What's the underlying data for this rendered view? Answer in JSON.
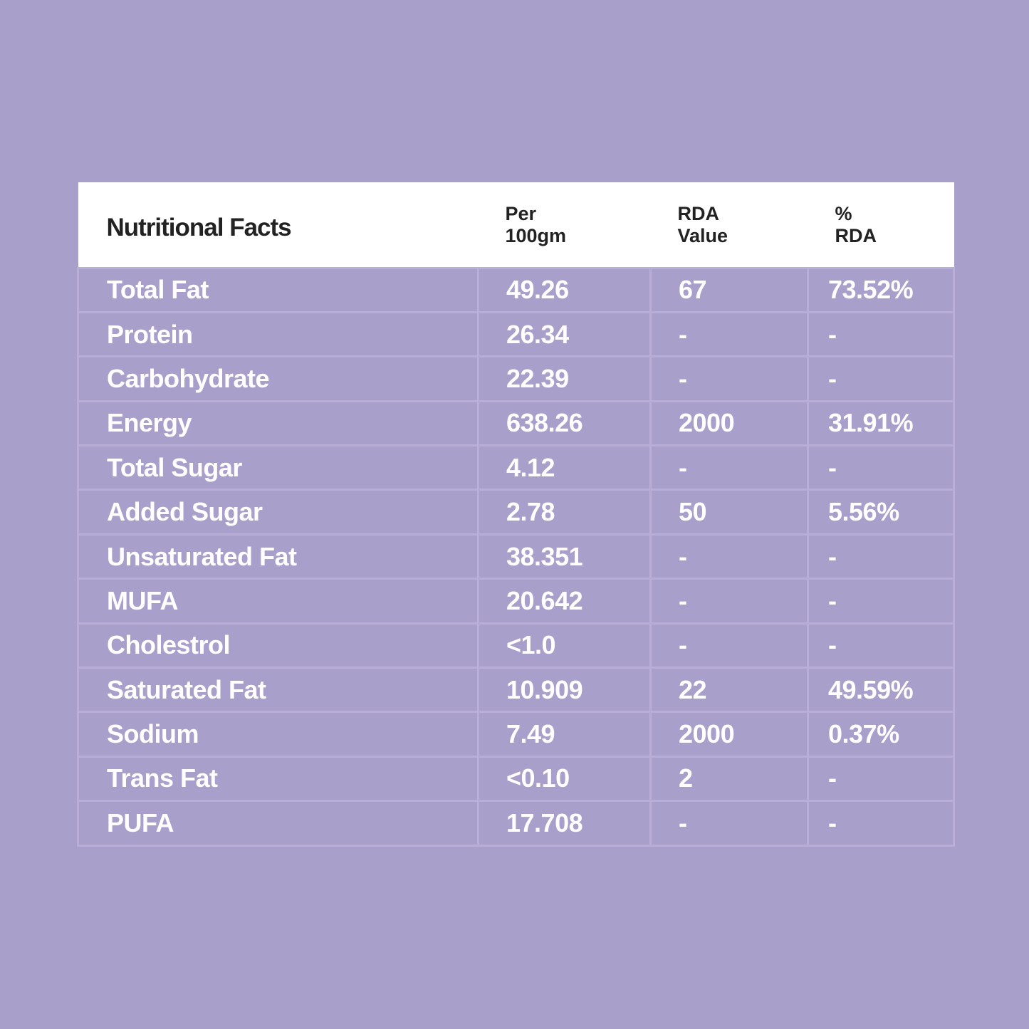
{
  "table": {
    "header": [
      [
        "Nutritional Facts"
      ],
      [
        "Per",
        "100gm"
      ],
      [
        "RDA",
        "Value"
      ],
      [
        "%",
        "RDA"
      ]
    ],
    "rows": [
      [
        "Total Fat",
        "49.26",
        "67",
        "73.52%"
      ],
      [
        "Protein",
        "26.34",
        "-",
        "-"
      ],
      [
        "Carbohydrate",
        "22.39",
        "-",
        "-"
      ],
      [
        "Energy",
        "638.26",
        "2000",
        "31.91%"
      ],
      [
        "Total Sugar",
        "4.12",
        "-",
        "-"
      ],
      [
        "Added Sugar",
        "2.78",
        "50",
        "5.56%"
      ],
      [
        "Unsaturated Fat",
        "38.351",
        "-",
        "-"
      ],
      [
        "MUFA",
        "20.642",
        "-",
        "-"
      ],
      [
        "Cholestrol",
        "<1.0",
        "-",
        "-"
      ],
      [
        "Saturated Fat",
        "10.909",
        "22",
        "49.59%"
      ],
      [
        "Sodium",
        "7.49",
        "2000",
        "0.37%"
      ],
      [
        "Trans Fat",
        "<0.10",
        "2",
        "-"
      ],
      [
        "PUFA",
        "17.708",
        "-",
        "-"
      ]
    ]
  }
}
